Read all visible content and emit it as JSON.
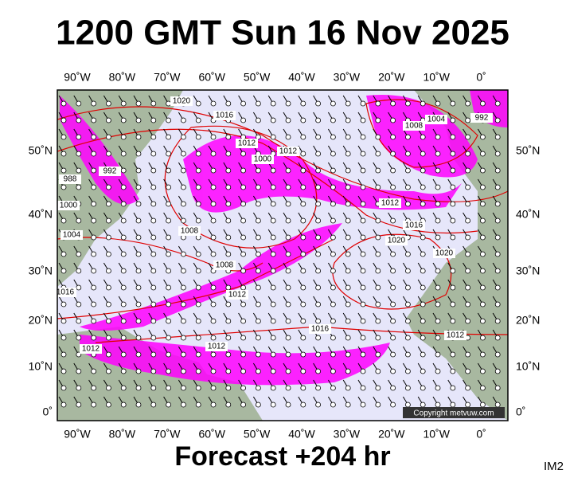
{
  "header": {
    "title": "1200 GMT Sun 16 Nov 2025"
  },
  "map": {
    "lon_labels": [
      "90˚W",
      "80˚W",
      "70˚W",
      "60˚W",
      "50˚W",
      "40˚W",
      "30˚W",
      "20˚W",
      "10˚W",
      "0˚"
    ],
    "lat_labels": [
      "50˚N",
      "40˚N",
      "30˚N",
      "20˚N",
      "10˚N",
      "0˚"
    ],
    "isobar_labels": [
      "1020",
      "1016",
      "1008",
      "1004",
      "992",
      "1012",
      "1000",
      "992",
      "988",
      "1000",
      "1004",
      "1008",
      "1008",
      "1012",
      "1012",
      "1016",
      "1020",
      "1016",
      "1020",
      "1012",
      "1012",
      "1012",
      "1016",
      "1012"
    ],
    "copyright": "Copyright metvuw.com"
  },
  "footer": {
    "forecast": "Forecast +204 hr",
    "code": "IM2"
  }
}
